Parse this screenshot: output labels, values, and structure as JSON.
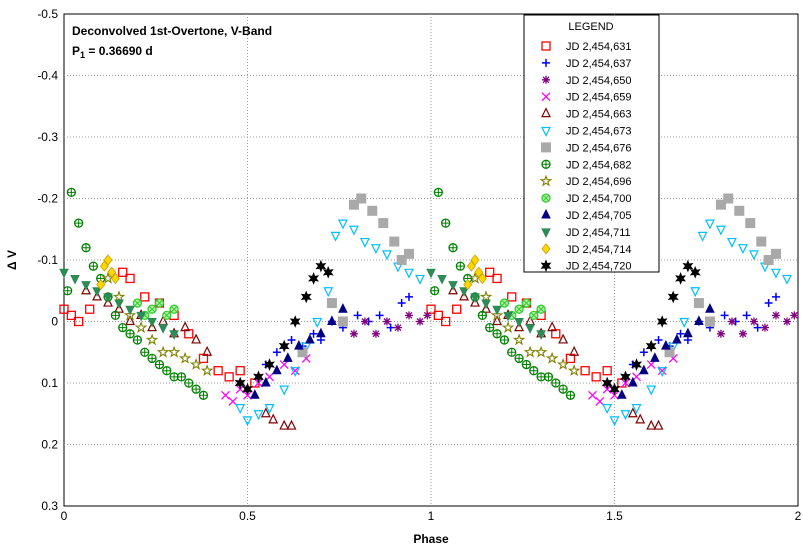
{
  "chart_data": {
    "type": "scatter",
    "annotation_line1": "Deconvolved 1st-Overtone, V-Band",
    "annotation_line2_main": "P",
    "annotation_line2_sub": "1",
    "annotation_line2_rest": " = 0.36690 d",
    "xlabel": "Phase",
    "ylabel": "Δ V",
    "xlim": [
      0,
      2
    ],
    "ylim": [
      -0.5,
      0.3
    ],
    "y_inverted": true,
    "x_ticks": [
      "0",
      "0.5",
      "1",
      "1.5",
      "2"
    ],
    "x_tick_values": [
      0,
      0.5,
      1,
      1.5,
      2
    ],
    "y_ticks": [
      "-0.5",
      "-0.4",
      "-0.3",
      "-0.2",
      "-0.1",
      "0",
      "0.1",
      "0.2",
      "0.3"
    ],
    "y_tick_values": [
      -0.5,
      -0.4,
      -0.3,
      -0.2,
      -0.1,
      0,
      0.1,
      0.2,
      0.3
    ],
    "grid": "dotted",
    "legend_title": "LEGEND",
    "legend_position": "top-right",
    "phase_repeat": "data plotted over phase 0-1 and repeated at phase +1",
    "series": [
      {
        "name": "JD 2,454,631",
        "marker": "square-open",
        "color": "#ff0000",
        "x": [
          0.0,
          0.02,
          0.04,
          0.07,
          0.16,
          0.18,
          0.22,
          0.26,
          0.3,
          0.34,
          0.38,
          0.42,
          0.45,
          0.48,
          0.52
        ],
        "y": [
          -0.02,
          -0.01,
          0.0,
          -0.02,
          -0.08,
          -0.07,
          -0.04,
          -0.03,
          -0.01,
          0.02,
          0.06,
          0.08,
          0.09,
          0.08,
          0.1
        ]
      },
      {
        "name": "JD 2,454,637",
        "marker": "plus",
        "color": "#0000ff",
        "x": [
          0.55,
          0.58,
          0.62,
          0.65,
          0.68,
          0.7,
          0.73,
          0.76,
          0.8,
          0.83,
          0.86,
          0.89,
          0.92,
          0.94
        ],
        "y": [
          0.07,
          0.05,
          0.03,
          0.04,
          0.02,
          0.03,
          0.0,
          0.01,
          -0.01,
          0.0,
          -0.01,
          0.01,
          -0.03,
          -0.04
        ]
      },
      {
        "name": "JD 2,454,650",
        "marker": "asterisk",
        "color": "#800080",
        "x": [
          0.76,
          0.79,
          0.82,
          0.85,
          0.88,
          0.91,
          0.94,
          0.97,
          0.99
        ],
        "y": [
          0.0,
          0.02,
          0.0,
          0.02,
          0.0,
          0.01,
          -0.01,
          0.0,
          -0.01
        ]
      },
      {
        "name": "JD 2,454,659",
        "marker": "x",
        "color": "#ff00ff",
        "x": [
          0.44,
          0.46,
          0.48,
          0.5,
          0.53,
          0.56,
          0.6,
          0.63,
          0.66
        ],
        "y": [
          0.12,
          0.13,
          0.11,
          0.12,
          0.1,
          0.09,
          0.07,
          0.08,
          0.06
        ]
      },
      {
        "name": "JD 2,454,663",
        "marker": "triangle-open",
        "color": "#800000",
        "x": [
          0.06,
          0.09,
          0.12,
          0.15,
          0.18,
          0.21,
          0.24,
          0.27,
          0.3,
          0.33,
          0.36,
          0.39,
          0.55,
          0.57,
          0.6,
          0.62
        ],
        "y": [
          -0.05,
          -0.04,
          -0.03,
          -0.02,
          0.0,
          -0.01,
          0.01,
          0.0,
          0.02,
          0.01,
          0.03,
          0.05,
          0.15,
          0.16,
          0.17,
          0.17
        ]
      },
      {
        "name": "JD 2,454,673",
        "marker": "triangle-down-open",
        "color": "#00bfff",
        "x": [
          0.48,
          0.5,
          0.53,
          0.56,
          0.6,
          0.63,
          0.66,
          0.69,
          0.72,
          0.74,
          0.76,
          0.79,
          0.82,
          0.85,
          0.88,
          0.91,
          0.94,
          0.97
        ],
        "y": [
          0.14,
          0.16,
          0.15,
          0.14,
          0.11,
          0.08,
          0.04,
          0.0,
          -0.05,
          -0.14,
          -0.16,
          -0.15,
          -0.13,
          -0.12,
          -0.11,
          -0.09,
          -0.08,
          -0.07
        ]
      },
      {
        "name": "JD 2,454,676",
        "marker": "square-filled",
        "color": "#a9a9a9",
        "x": [
          0.65,
          0.73,
          0.76,
          0.79,
          0.81,
          0.84,
          0.87,
          0.9,
          0.92,
          0.94
        ],
        "y": [
          0.05,
          -0.03,
          0.0,
          -0.19,
          -0.2,
          -0.18,
          -0.16,
          -0.13,
          -0.1,
          -0.11
        ]
      },
      {
        "name": "JD 2,454,682",
        "marker": "circle-plus",
        "color": "#008000",
        "x": [
          0.01,
          0.02,
          0.04,
          0.06,
          0.08,
          0.1,
          0.12,
          0.14,
          0.16,
          0.18,
          0.2,
          0.22,
          0.24,
          0.26,
          0.28,
          0.3,
          0.32,
          0.34,
          0.36,
          0.38
        ],
        "y": [
          -0.05,
          -0.21,
          -0.16,
          -0.12,
          -0.09,
          -0.07,
          -0.04,
          -0.01,
          0.01,
          0.02,
          0.03,
          0.05,
          0.06,
          0.07,
          0.08,
          0.09,
          0.09,
          0.1,
          0.11,
          0.12
        ]
      },
      {
        "name": "JD 2,454,696",
        "marker": "star-open",
        "color": "#808000",
        "x": [
          0.12,
          0.15,
          0.18,
          0.21,
          0.24,
          0.27,
          0.3,
          0.33,
          0.36,
          0.39
        ],
        "y": [
          -0.07,
          -0.04,
          -0.01,
          0.01,
          0.03,
          0.05,
          0.05,
          0.06,
          0.07,
          0.08
        ]
      },
      {
        "name": "JD 2,454,700",
        "marker": "circle-cross",
        "color": "#32cd32",
        "x": [
          0.2,
          0.22,
          0.24,
          0.26,
          0.28,
          0.3
        ],
        "y": [
          -0.03,
          -0.01,
          -0.02,
          -0.03,
          -0.01,
          -0.02
        ]
      },
      {
        "name": "JD 2,454,705",
        "marker": "triangle-filled",
        "color": "#000080",
        "x": [
          0.52,
          0.55,
          0.58,
          0.61,
          0.64,
          0.67,
          0.7,
          0.73,
          0.76
        ],
        "y": [
          0.12,
          0.1,
          0.08,
          0.06,
          0.04,
          0.03,
          0.02,
          0.0,
          -0.02
        ]
      },
      {
        "name": "JD 2,454,711",
        "marker": "triangle-down-filled",
        "color": "#2e8b57",
        "x": [
          0.0,
          0.03,
          0.06,
          0.09,
          0.12,
          0.15,
          0.18,
          0.21,
          0.24,
          0.27,
          0.3
        ],
        "y": [
          -0.08,
          -0.07,
          -0.06,
          -0.05,
          -0.04,
          -0.03,
          -0.02,
          -0.01,
          0.0,
          0.01,
          0.02
        ]
      },
      {
        "name": "JD 2,454,714",
        "marker": "diamond-filled",
        "color": "#ffd700",
        "x": [
          0.1,
          0.11,
          0.12,
          0.13,
          0.14
        ],
        "y": [
          -0.06,
          -0.09,
          -0.1,
          -0.08,
          -0.07
        ]
      },
      {
        "name": "JD 2,454,720",
        "marker": "star-filled",
        "color": "#000000",
        "x": [
          0.48,
          0.5,
          0.53,
          0.56,
          0.6,
          0.63,
          0.66,
          0.68,
          0.7,
          0.72
        ],
        "y": [
          0.1,
          0.11,
          0.09,
          0.07,
          0.04,
          0.0,
          -0.04,
          -0.07,
          -0.09,
          -0.08
        ]
      }
    ]
  }
}
